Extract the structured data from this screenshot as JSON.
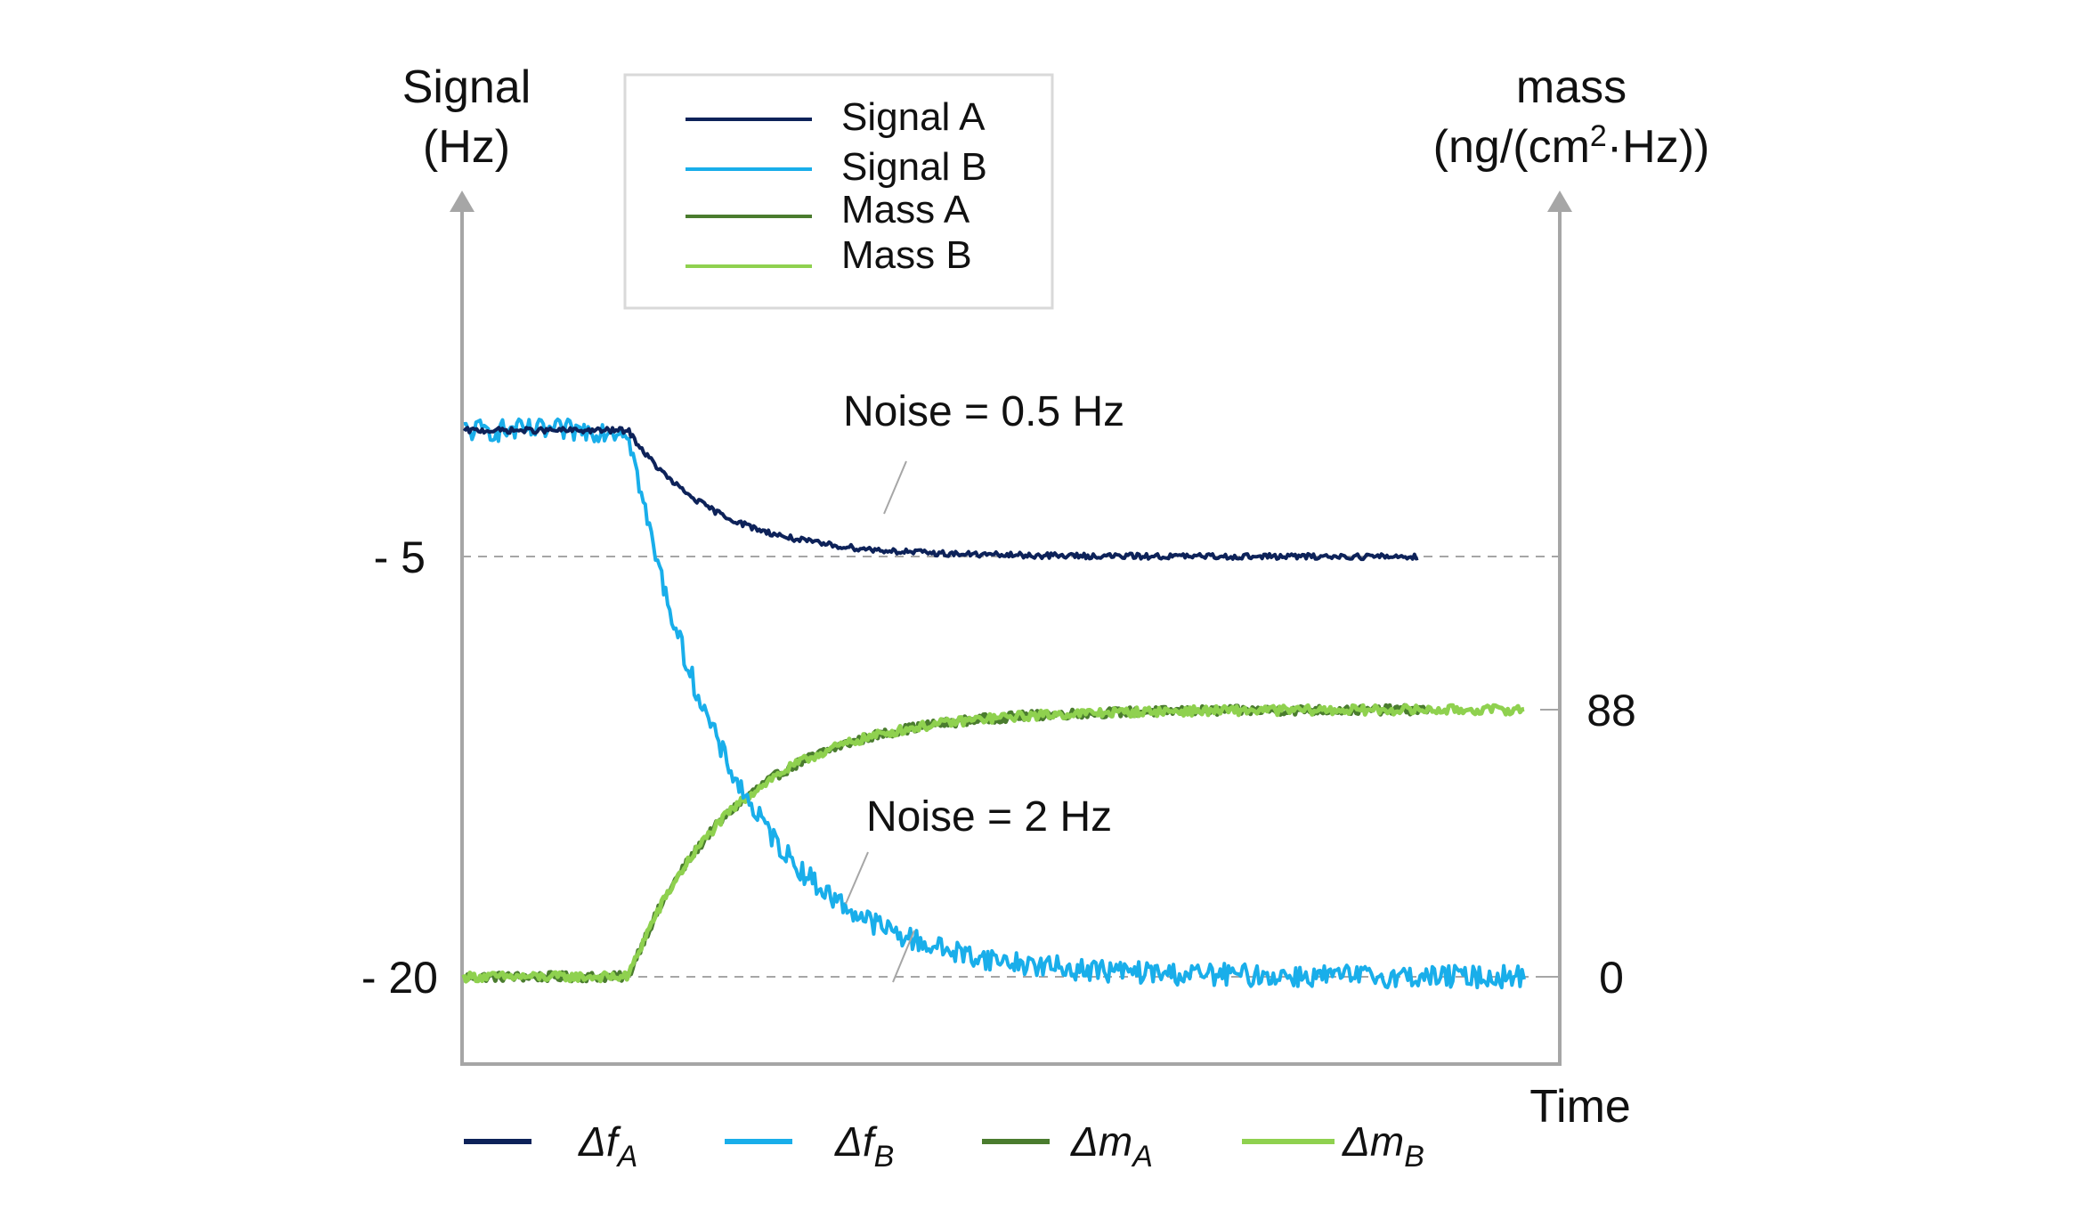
{
  "chart_data": {
    "type": "line",
    "y_left": {
      "label_line1": "Signal",
      "label_line2": "(Hz)",
      "ticks": [
        {
          "label": "- 5",
          "value": -5
        },
        {
          "label": "- 20",
          "value": -20
        }
      ],
      "range": [
        -23,
        0.5
      ]
    },
    "y_right": {
      "label_line1": "mass",
      "label_line2_pre": "(ng/(cm",
      "label_line2_sup": "2",
      "label_line2_post": "·Hz))",
      "ticks": [
        {
          "label": "88",
          "value": 88
        },
        {
          "label": "0",
          "value": 0
        }
      ]
    },
    "x_axis": {
      "label": "Time",
      "range": [
        0,
        100
      ]
    },
    "colors": {
      "signal_a": "#0d2259",
      "signal_b": "#19aeea",
      "mass_a": "#4a7c2e",
      "mass_b": "#8fd14f",
      "axis": "#a6a6a6",
      "gridline": "#a6a6a6",
      "annotation_line": "#a6a6a6",
      "legend_border": "#d9d9d9"
    },
    "series": [
      {
        "key": "signal_a",
        "name": "Signal A",
        "axis": "left",
        "baseline": -0.5,
        "final": -5,
        "t_start": 15.5,
        "t_end": 90,
        "tau": 8,
        "noise": 0.1,
        "delay": 0
      },
      {
        "key": "signal_b",
        "name": "Signal B",
        "axis": "left",
        "baseline": -0.5,
        "final": -20,
        "t_start": 15.5,
        "t_end": 100,
        "tau": 10,
        "noise": 0.4,
        "delay": 0
      },
      {
        "key": "mass_a",
        "name": "Mass A",
        "axis": "right",
        "baseline": 0,
        "final": 88,
        "t_start": 15.5,
        "t_end": 91,
        "tau": 10,
        "noise": 1.5,
        "delay": 0
      },
      {
        "key": "mass_b",
        "name": "Mass B",
        "axis": "right",
        "baseline": 0,
        "final": 88,
        "t_start": 15.5,
        "t_end": 100,
        "tau": 10,
        "noise": 1.5,
        "delay": 0
      }
    ],
    "annotations": [
      {
        "text": "Noise = 0.5 Hz"
      },
      {
        "text": "Noise = 2 Hz"
      }
    ],
    "bottom_legend": [
      {
        "series": "signal_a",
        "base": "Δf",
        "sub": "A"
      },
      {
        "series": "signal_b",
        "base": "Δf",
        "sub": "B"
      },
      {
        "series": "mass_a",
        "base": "Δm",
        "sub": "A"
      },
      {
        "series": "mass_b",
        "base": "Δm",
        "sub": "B"
      }
    ],
    "legend_position": "top-center",
    "grid": false
  }
}
